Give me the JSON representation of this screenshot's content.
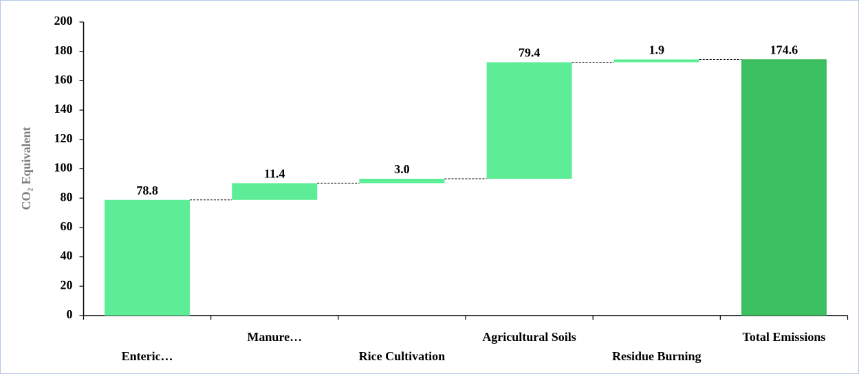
{
  "chart_data": {
    "type": "waterfall",
    "y_label": "CO₂ Equivalent",
    "categories": [
      "Enteric…",
      "Manure…",
      "Rice Cultivation",
      "Agricultural Soils",
      "Residue Burning",
      "Total Emissions"
    ],
    "values": [
      78.8,
      11.4,
      3.0,
      79.4,
      1.9,
      174.6
    ],
    "value_labels": [
      "78.8",
      "11.4",
      "3.0",
      "79.4",
      "1.9",
      "174.6"
    ],
    "measure": [
      "relative",
      "relative",
      "relative",
      "relative",
      "relative",
      "total"
    ],
    "colors": [
      "#5ced96",
      "#5ced96",
      "#5ced96",
      "#5ced96",
      "#5ced96",
      "#3bbf60"
    ],
    "ylim": [
      0,
      200
    ],
    "yticks": [
      0,
      20,
      40,
      60,
      80,
      100,
      120,
      140,
      160,
      180,
      200
    ]
  }
}
